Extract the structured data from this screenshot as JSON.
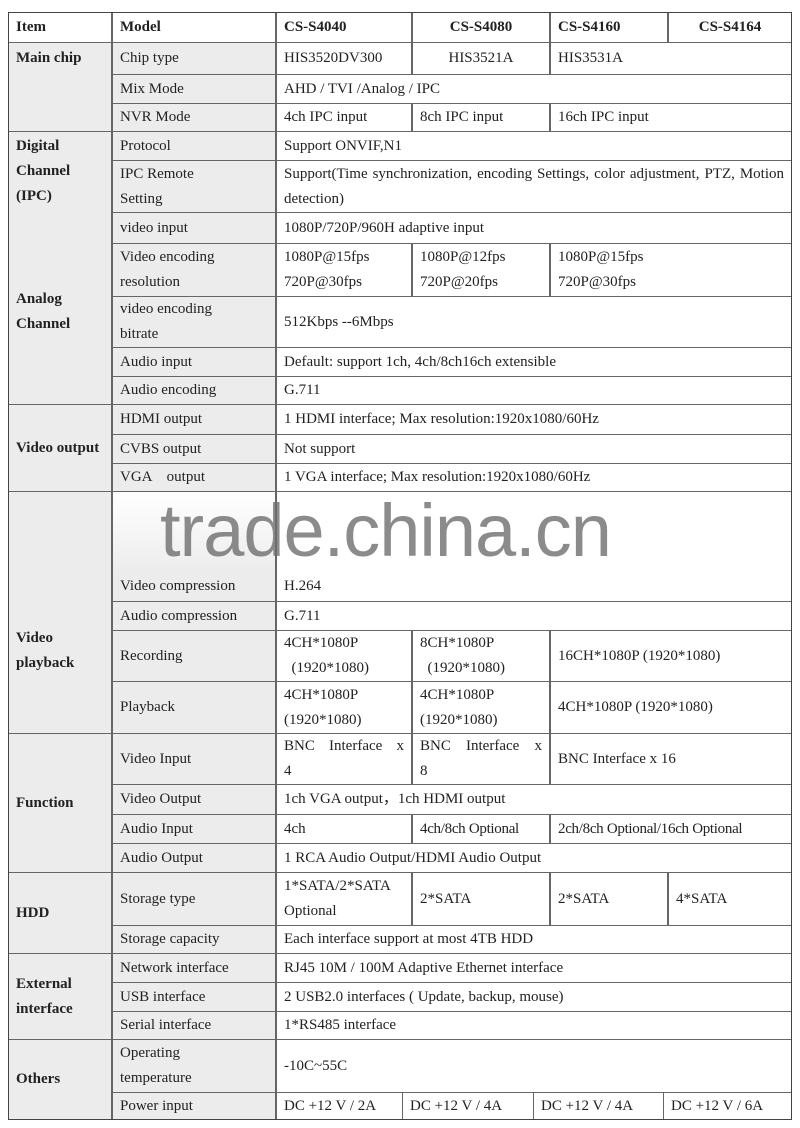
{
  "header": {
    "item": "Item",
    "model": "Model",
    "models": [
      "CS-S4040",
      "CS-S4080",
      "CS-S4160",
      "CS-S4164"
    ]
  },
  "groups": {
    "main_chip": "Main chip",
    "digital": "Digital Channel (IPC)",
    "analog": "Analog Channel",
    "video_output": "Video output",
    "video_playback": "Video playback",
    "function": "Function",
    "hdd": "HDD",
    "external": "External interface",
    "others": "Others"
  },
  "rows": {
    "chip_type": {
      "label": "Chip type",
      "values": [
        "HIS3520DV300",
        "HIS3521A",
        "HIS3531A"
      ]
    },
    "mix_mode": {
      "label": "Mix Mode",
      "value": "AHD / TVI /Analog / IPC"
    },
    "nvr_mode": {
      "label": "NVR Mode",
      "values": [
        "4ch IPC input",
        "8ch IPC input",
        "16ch IPC input"
      ]
    },
    "protocol": {
      "label": "Protocol",
      "value": "Support ONVIF,N1"
    },
    "ipc_remote": {
      "label": "IPC Remote Setting",
      "value": "Support(Time synchronization, encoding Settings, color adjustment, PTZ, Motion detection)"
    },
    "video_input": {
      "label": "video input",
      "value": "1080P/720P/960H adaptive input"
    },
    "enc_res": {
      "label": "Video encoding resolution",
      "values": [
        "1080P@15fps\n720P@30fps",
        "1080P@12fps\n720P@20fps",
        "1080P@15fps\n720P@30fps"
      ]
    },
    "enc_bitrate": {
      "label": "video encoding bitrate",
      "value": "512Kbps --6Mbps"
    },
    "audio_input_a": {
      "label": "Audio input",
      "value": "Default: support 1ch, 4ch/8ch16ch extensible"
    },
    "audio_encoding": {
      "label": "Audio encoding",
      "value": "G.711"
    },
    "hdmi": {
      "label": "HDMI output",
      "value": "1 HDMI interface; Max resolution:1920x1080/60Hz"
    },
    "cvbs": {
      "label": "CVBS output",
      "value": "Not support"
    },
    "vga": {
      "label": "VGA    output",
      "value": "1 VGA interface; Max resolution:1920x1080/60Hz"
    },
    "video_comp": {
      "label": "Video compression",
      "value": "H.264"
    },
    "audio_comp": {
      "label": "Audio compression",
      "value": "G.711"
    },
    "recording": {
      "label": "Recording",
      "values": [
        "4CH*1080P\n  (1920*1080)",
        "8CH*1080P\n  (1920*1080)",
        "16CH*1080P (1920*1080)"
      ]
    },
    "playback": {
      "label": "Playback",
      "values": [
        "4CH*1080P\n(1920*1080)",
        "4CH*1080P\n(1920*1080)",
        "4CH*1080P (1920*1080)"
      ]
    },
    "fn_video_input": {
      "label": "Video Input",
      "values": [
        "BNC Interface x 4",
        "BNC Interface x 8",
        "BNC Interface x 16"
      ]
    },
    "fn_video_output": {
      "label": "Video Output",
      "value": "1ch VGA output，1ch HDMI output"
    },
    "fn_audio_input": {
      "label": "Audio Input",
      "values": [
        "4ch",
        "4ch/8ch Optional",
        "2ch/8ch Optional/16ch Optional"
      ]
    },
    "fn_audio_output": {
      "label": "Audio Output",
      "value": "1 RCA Audio Output/HDMI Audio Output"
    },
    "storage_type": {
      "label": "Storage type",
      "values": [
        "1*SATA/2*SATA Optional",
        "2*SATA",
        "2*SATA",
        "4*SATA"
      ]
    },
    "storage_cap": {
      "label": "Storage capacity",
      "value": "Each interface support at most 4TB HDD"
    },
    "network": {
      "label": "Network interface",
      "value": "RJ45 10M / 100M Adaptive Ethernet interface"
    },
    "usb": {
      "label": "USB interface",
      "value": "2 USB2.0 interfaces ( Update, backup, mouse)"
    },
    "serial": {
      "label": "Serial interface",
      "value": "1*RS485 interface"
    },
    "temp": {
      "label": "Operating temperature",
      "value": "-10C~55C"
    },
    "power": {
      "label": "Power input",
      "values": [
        "DC +12 V / 2A",
        "DC +12 V / 4A",
        "DC +12 V / 4A",
        "DC +12 V / 6A"
      ]
    }
  },
  "watermark": "trade.china.cn"
}
